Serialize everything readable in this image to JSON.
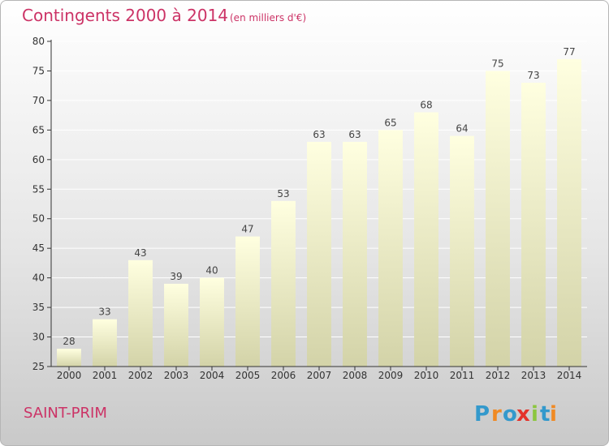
{
  "chart_data": {
    "type": "bar",
    "title": "Contingents 2000 à 2014",
    "subtitle": "(en milliers d'€)",
    "categories": [
      "2000",
      "2001",
      "2002",
      "2003",
      "2004",
      "2005",
      "2006",
      "2007",
      "2008",
      "2009",
      "2010",
      "2011",
      "2012",
      "2013",
      "2014"
    ],
    "values": [
      28,
      33,
      43,
      39,
      40,
      47,
      53,
      63,
      63,
      65,
      68,
      64,
      75,
      73,
      77
    ],
    "ylim": [
      25,
      80
    ],
    "yticks": [
      25,
      30,
      35,
      40,
      45,
      50,
      55,
      60,
      65,
      70,
      75,
      80
    ],
    "grid": true,
    "xlabel": "",
    "ylabel": ""
  },
  "place_label": "SAINT-PRIM",
  "logo": {
    "text": "Proxiti",
    "letters": [
      "P",
      "r",
      "o",
      "x",
      "i",
      "t",
      "i"
    ]
  },
  "colors": {
    "title": "#cc3366",
    "bar_top": "#ffffe0",
    "bar_bottom": "#d6d6aa",
    "grid": "#ffffff",
    "axis": "#333333"
  }
}
